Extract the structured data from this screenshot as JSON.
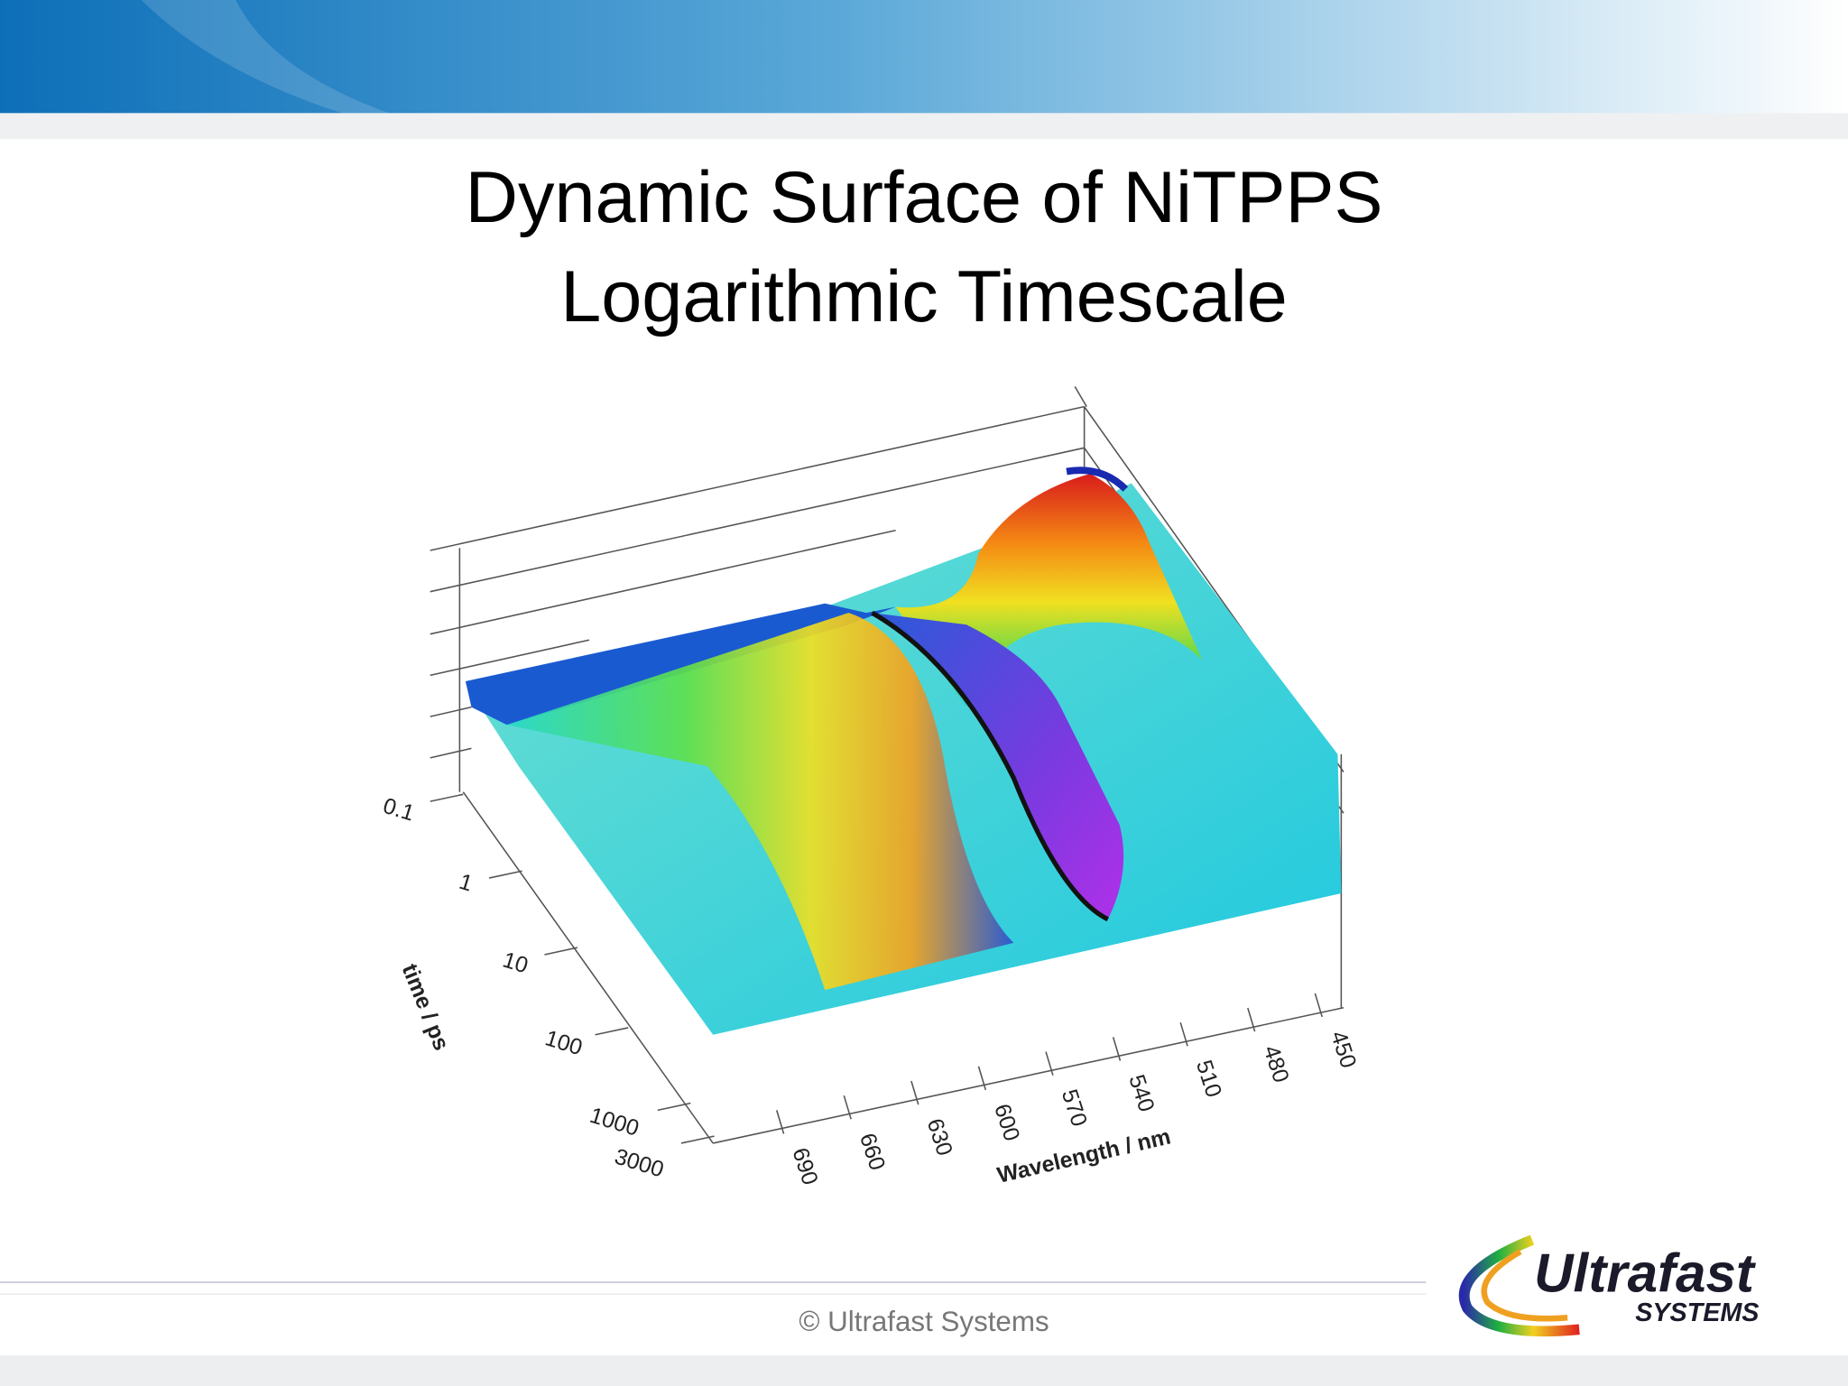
{
  "header": {
    "title_lines": [
      "Dynamic Surface of NiTPPS",
      "Logarithmic Timescale"
    ]
  },
  "plot": {
    "time_axis": {
      "label": "time / ps",
      "ticks": [
        "0.1",
        "1",
        "10",
        "100",
        "1000",
        "3000"
      ]
    },
    "wavelength_axis": {
      "label": "Wavelength / nm",
      "ticks": [
        "690",
        "660",
        "630",
        "600",
        "570",
        "540",
        "510",
        "480",
        "450"
      ]
    }
  },
  "footer": {
    "copyright": "© Ultrafast Systems",
    "logo": {
      "name": "Ultrafast",
      "sub": "SYSTEMS"
    }
  }
}
